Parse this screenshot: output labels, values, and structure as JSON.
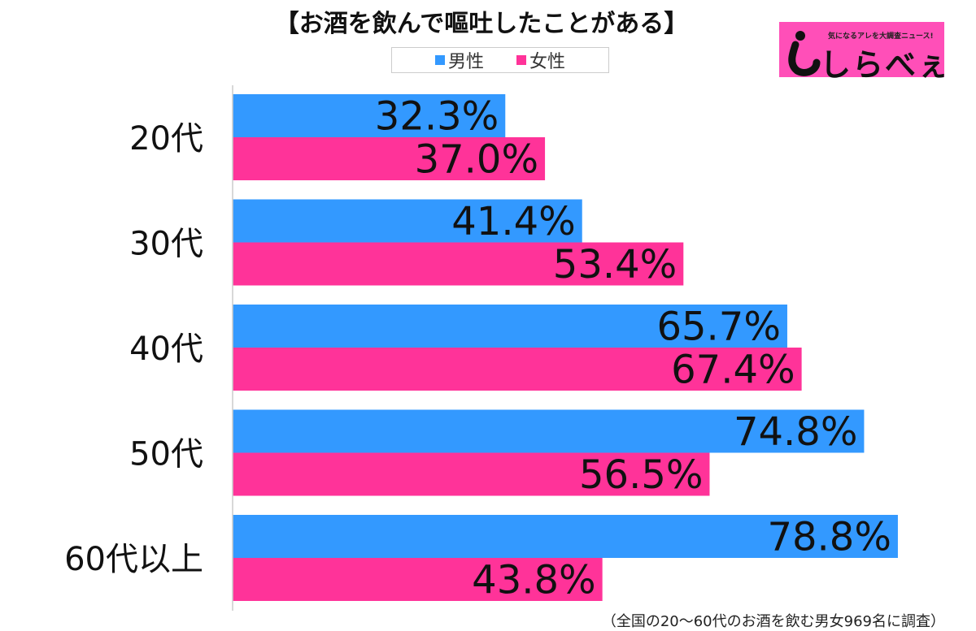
{
  "chart_data": {
    "type": "bar",
    "orientation": "horizontal",
    "title": "【お酒を飲んで嘔吐したことがある】",
    "categories": [
      "20代",
      "30代",
      "40代",
      "50代",
      "60代以上"
    ],
    "series": [
      {
        "name": "男性",
        "color": "#3399ff",
        "values": [
          32.3,
          41.4,
          65.7,
          74.8,
          78.8
        ]
      },
      {
        "name": "女性",
        "color": "#ff3399",
        "values": [
          37.0,
          53.4,
          67.4,
          56.5,
          43.8
        ]
      }
    ],
    "value_suffix": "%",
    "xlim": [
      0,
      100
    ],
    "grid": false,
    "legend_position": "top"
  },
  "logo": {
    "tagline": "気になるアレを大調査ニュース!",
    "brand": "しらべぇ"
  },
  "footnote": "（全国の20～60代のお酒を飲む男女969名に調査）"
}
